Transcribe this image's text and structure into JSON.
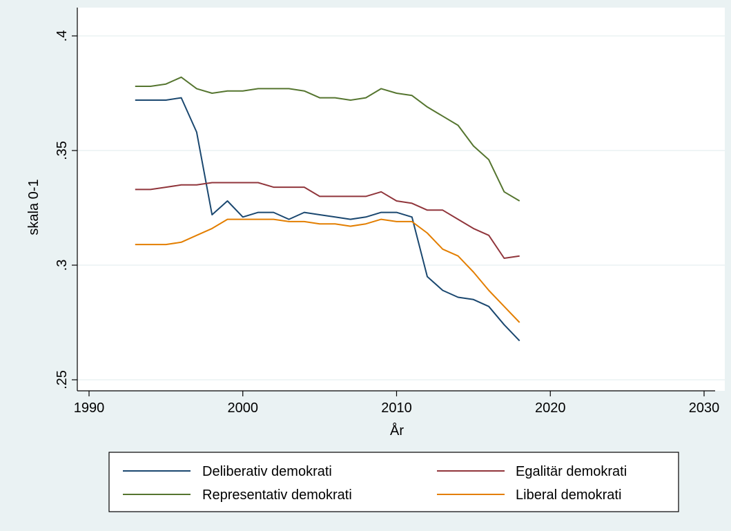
{
  "chart_data": {
    "type": "line",
    "xlabel": "År",
    "ylabel": "skala 0-1",
    "xlim": [
      1990,
      2030
    ],
    "ylim": [
      0.25,
      0.4
    ],
    "x_ticks": [
      1990,
      2000,
      2010,
      2020,
      2030
    ],
    "x_tick_labels": [
      "1990",
      "2000",
      "2010",
      "2020",
      "2030"
    ],
    "y_ticks": [
      0.25,
      0.3,
      0.35,
      0.4
    ],
    "y_tick_labels": [
      ".25",
      ".3",
      ".35",
      ".4"
    ],
    "grid": "horizontal",
    "legend_position": "bottom",
    "x": [
      1993,
      1994,
      1995,
      1996,
      1997,
      1998,
      1999,
      2000,
      2001,
      2002,
      2003,
      2004,
      2005,
      2006,
      2007,
      2008,
      2009,
      2010,
      2011,
      2012,
      2013,
      2014,
      2015,
      2016,
      2017,
      2018
    ],
    "series": [
      {
        "name": "Deliberativ demokrati",
        "color": "#1a476f",
        "values": [
          0.372,
          0.372,
          0.372,
          0.373,
          0.358,
          0.322,
          0.328,
          0.321,
          0.323,
          0.323,
          0.32,
          0.323,
          0.322,
          0.321,
          0.32,
          0.321,
          0.323,
          0.323,
          0.321,
          0.295,
          0.289,
          0.286,
          0.285,
          0.282,
          0.274,
          0.267
        ]
      },
      {
        "name": "Egalitär demokrati",
        "color": "#90353b",
        "values": [
          0.333,
          0.333,
          0.334,
          0.335,
          0.335,
          0.336,
          0.336,
          0.336,
          0.336,
          0.334,
          0.334,
          0.334,
          0.33,
          0.33,
          0.33,
          0.33,
          0.332,
          0.328,
          0.327,
          0.324,
          0.324,
          0.32,
          0.316,
          0.313,
          0.303,
          0.304
        ]
      },
      {
        "name": "Representativ demokrati",
        "color": "#55752f",
        "values": [
          0.378,
          0.378,
          0.379,
          0.382,
          0.377,
          0.375,
          0.376,
          0.376,
          0.377,
          0.377,
          0.377,
          0.376,
          0.373,
          0.373,
          0.372,
          0.373,
          0.377,
          0.375,
          0.374,
          0.369,
          0.365,
          0.361,
          0.352,
          0.346,
          0.332,
          0.328
        ]
      },
      {
        "name": "Liberal demokrati",
        "color": "#e37e00",
        "values": [
          0.309,
          0.309,
          0.309,
          0.31,
          0.313,
          0.316,
          0.32,
          0.32,
          0.32,
          0.32,
          0.319,
          0.319,
          0.318,
          0.318,
          0.317,
          0.318,
          0.32,
          0.319,
          0.319,
          0.314,
          0.307,
          0.304,
          0.297,
          0.289,
          0.282,
          0.275
        ]
      }
    ]
  },
  "colors": {
    "outer_background": "#eaf2f3",
    "plot_background": "#ffffff",
    "gridline": "#eaf2f3",
    "axis": "#000000"
  }
}
